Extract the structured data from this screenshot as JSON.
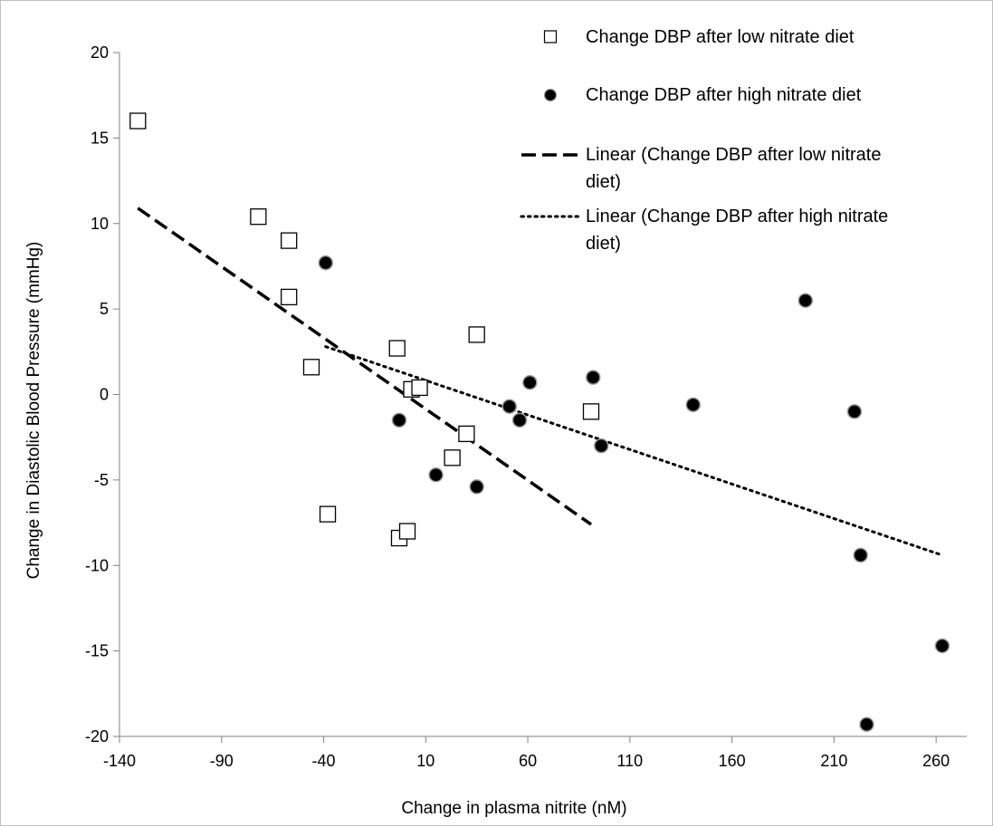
{
  "chart_data": {
    "type": "scatter",
    "xlabel": "Change in plasma nitrite (nM)",
    "ylabel": "Change in Diastolic Blood Pressure  (mmHg)",
    "xlim": [
      -140,
      275
    ],
    "ylim": [
      -20,
      20
    ],
    "x_ticks": [
      -140,
      -90,
      -40,
      10,
      60,
      110,
      160,
      210,
      260
    ],
    "y_ticks": [
      -20,
      -15,
      -10,
      -5,
      0,
      5,
      10,
      15,
      20
    ],
    "grid": false,
    "legend_position": "top-right",
    "series": [
      {
        "name": "Change DBP after low nitrate diet",
        "marker": "open-square",
        "color": "#000000",
        "points": [
          {
            "x": -131,
            "y": 16.0
          },
          {
            "x": -72,
            "y": 10.4
          },
          {
            "x": -57,
            "y": 9.0
          },
          {
            "x": -57,
            "y": 5.7
          },
          {
            "x": -46,
            "y": 1.6
          },
          {
            "x": -38,
            "y": -7.0
          },
          {
            "x": -4,
            "y": 2.7
          },
          {
            "x": 3,
            "y": 0.3
          },
          {
            "x": 7,
            "y": 0.4
          },
          {
            "x": -3,
            "y": -8.4
          },
          {
            "x": 1,
            "y": -8.0
          },
          {
            "x": 23,
            "y": -3.7
          },
          {
            "x": 30,
            "y": -2.3
          },
          {
            "x": 35,
            "y": 3.5
          },
          {
            "x": 91,
            "y": -1.0
          }
        ]
      },
      {
        "name": "Change DBP after high nitrate diet",
        "marker": "filled-circle",
        "color": "#000000",
        "points": [
          {
            "x": -39,
            "y": 7.7
          },
          {
            "x": -3,
            "y": -1.5
          },
          {
            "x": 15,
            "y": -4.7
          },
          {
            "x": 35,
            "y": -5.4
          },
          {
            "x": 51,
            "y": -0.7
          },
          {
            "x": 56,
            "y": -1.5
          },
          {
            "x": 61,
            "y": 0.7
          },
          {
            "x": 92,
            "y": 1.0
          },
          {
            "x": 96,
            "y": -3.0
          },
          {
            "x": 141,
            "y": -0.6
          },
          {
            "x": 196,
            "y": 5.5
          },
          {
            "x": 220,
            "y": -1.0
          },
          {
            "x": 223,
            "y": -9.4
          },
          {
            "x": 226,
            "y": -19.3
          },
          {
            "x": 263,
            "y": -14.7
          }
        ]
      }
    ],
    "trendlines": [
      {
        "name": "Linear (Change DBP after low nitrate diet)",
        "style": "dashed",
        "x_range": [
          -131,
          91
        ],
        "y_range": [
          10.9,
          -7.6
        ]
      },
      {
        "name": "Linear (Change DBP after high nitrate diet)",
        "style": "dotted",
        "x_range": [
          -39,
          263
        ],
        "y_range": [
          2.8,
          -9.4
        ]
      }
    ],
    "legend": [
      {
        "label": "Change DBP after low nitrate diet",
        "symbol": "open-square"
      },
      {
        "label": "Change DBP after high nitrate diet",
        "symbol": "filled-circle"
      },
      {
        "label_lines": [
          "Linear (Change DBP after low nitrate",
          "diet)"
        ],
        "symbol": "dashed-line"
      },
      {
        "label_lines": [
          "Linear (Change DBP after high nitrate",
          "diet)"
        ],
        "symbol": "dotted-line"
      }
    ]
  }
}
